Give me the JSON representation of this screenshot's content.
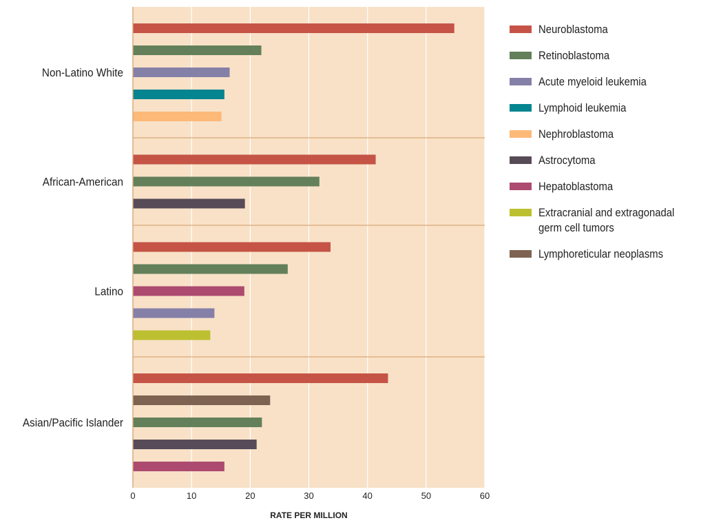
{
  "chart_data": {
    "type": "bar",
    "orientation": "horizontal",
    "title": "",
    "xlabel": "RATE PER MILLION",
    "ylabel": "",
    "xlim": [
      0,
      60
    ],
    "xticks": [
      0,
      10,
      20,
      30,
      40,
      50,
      60
    ],
    "grid": true,
    "background_color": "#f8e1c7",
    "legend_position": "right",
    "legend": [
      {
        "name": "Neuroblastoma",
        "color": "#c55446"
      },
      {
        "name": "Retinoblastoma",
        "color": "#63805a"
      },
      {
        "name": "Acute myeloid leukemia",
        "color": "#8580a8"
      },
      {
        "name": "Lymphoid leukemia",
        "color": "#05858f"
      },
      {
        "name": "Nephroblastoma",
        "color": "#fdb978"
      },
      {
        "name": "Astrocytoma",
        "color": "#574b57"
      },
      {
        "name": "Hepatoblastoma",
        "color": "#ac4a70"
      },
      {
        "name": "Extracranial and extragonadal germ cell tumors",
        "color": "#bcc030"
      },
      {
        "name": "Lymphoreticular neoplasms",
        "color": "#7f6352"
      }
    ],
    "groups": [
      {
        "label": "Non-Latino White",
        "bars": [
          {
            "series": "Neuroblastoma",
            "value": 54.8
          },
          {
            "series": "Retinoblastoma",
            "value": 21.9
          },
          {
            "series": "Acute myeloid leukemia",
            "value": 16.5
          },
          {
            "series": "Lymphoid leukemia",
            "value": 15.6
          },
          {
            "series": "Nephroblastoma",
            "value": 15.1
          }
        ]
      },
      {
        "label": "African-American",
        "bars": [
          {
            "series": "Neuroblastoma",
            "value": 41.4
          },
          {
            "series": "Retinoblastoma",
            "value": 31.8
          },
          {
            "series": "Astrocytoma",
            "value": 19.1
          }
        ]
      },
      {
        "label": "Latino",
        "bars": [
          {
            "series": "Neuroblastoma",
            "value": 33.7
          },
          {
            "series": "Retinoblastoma",
            "value": 26.4
          },
          {
            "series": "Hepatoblastoma",
            "value": 19.0
          },
          {
            "series": "Acute myeloid leukemia",
            "value": 13.9
          },
          {
            "series": "Extracranial and extragonadal germ cell tumors",
            "value": 13.2
          }
        ]
      },
      {
        "label": "Asian/Pacific Islander",
        "bars": [
          {
            "series": "Neuroblastoma",
            "value": 43.5
          },
          {
            "series": "Lymphoreticular neoplasms",
            "value": 23.4
          },
          {
            "series": "Retinoblastoma",
            "value": 22.0
          },
          {
            "series": "Astrocytoma",
            "value": 21.1
          },
          {
            "series": "Hepatoblastoma",
            "value": 15.6
          }
        ]
      }
    ]
  }
}
